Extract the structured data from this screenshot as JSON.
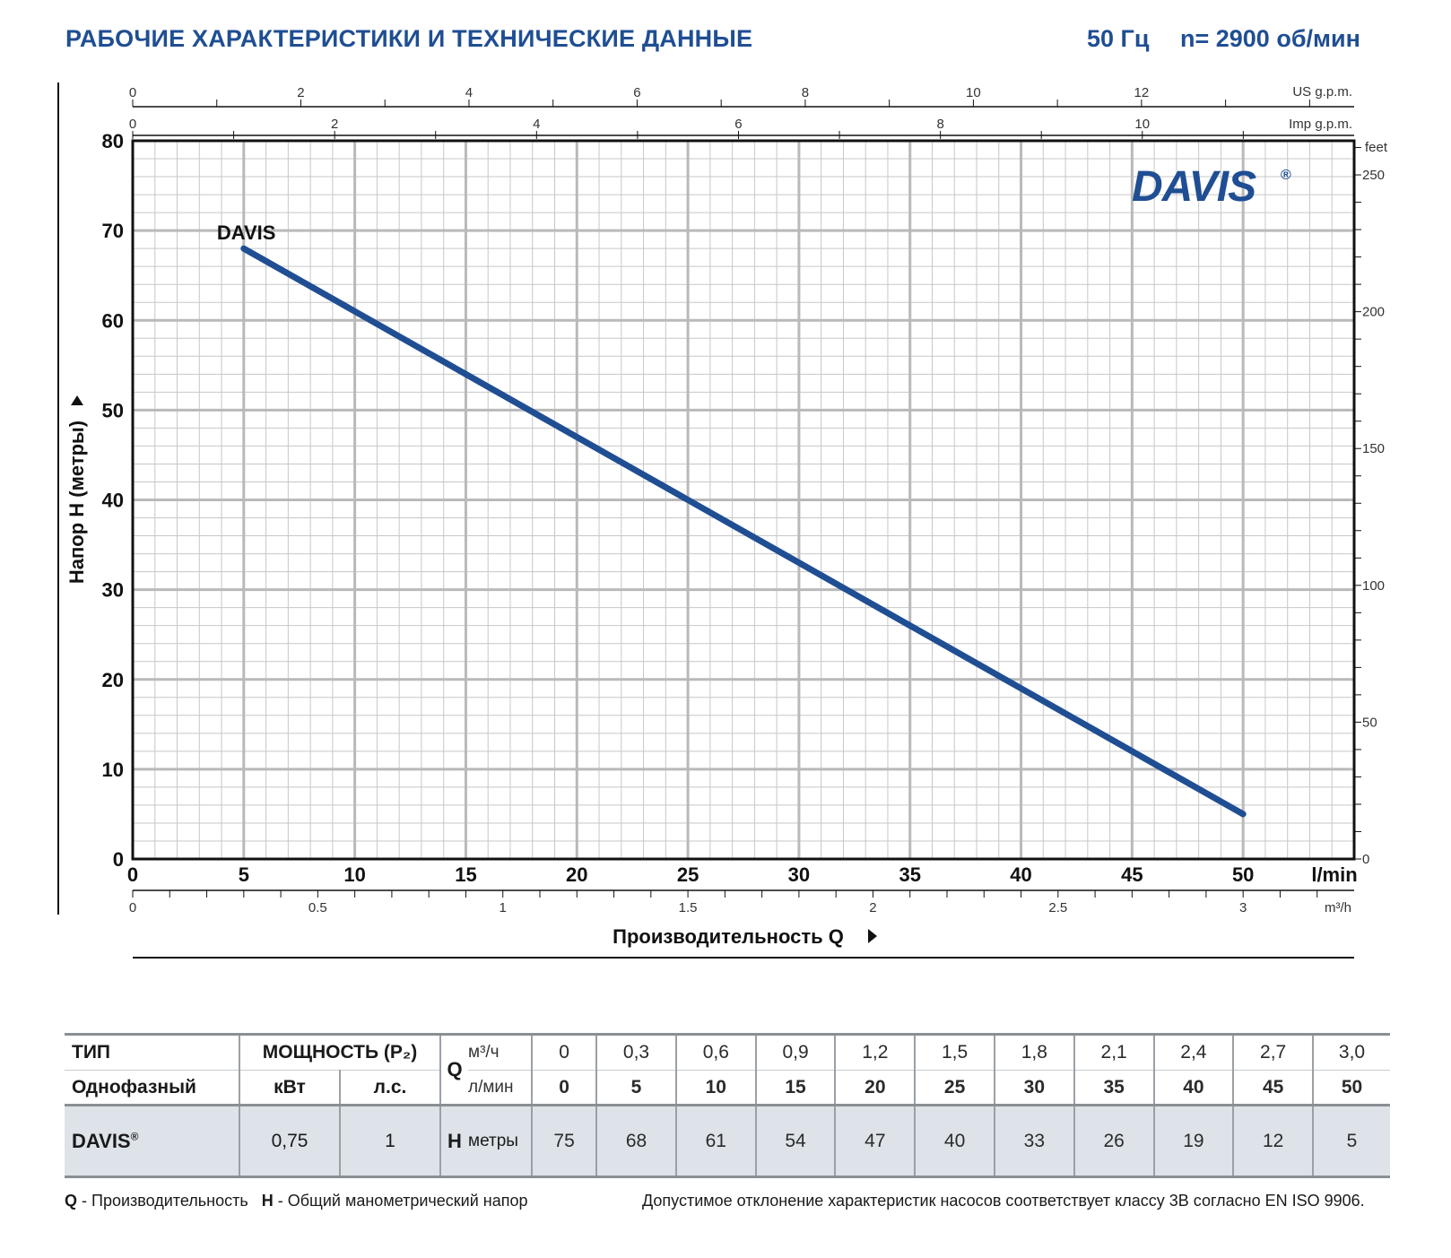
{
  "header": {
    "title": "РАБОЧИЕ ХАРАКТЕРИСТИКИ И ТЕХНИЧЕСКИЕ ДАННЫЕ",
    "frequency": "50 Гц",
    "speed": "n= 2900 об/мин"
  },
  "brand": {
    "logo_text": "DAVIS",
    "registered": "®",
    "color": "#1f4e93"
  },
  "chart_data": {
    "type": "line",
    "series": [
      {
        "name": "DAVIS",
        "color": "#1f4e93",
        "x": [
          5,
          10,
          15,
          20,
          25,
          30,
          35,
          40,
          45,
          50
        ],
        "y": [
          68,
          61,
          54,
          47,
          40,
          33,
          26,
          19,
          12,
          5
        ]
      }
    ],
    "x_axis": {
      "label": "Производительность Q",
      "unit": "l/min",
      "range": [
        0,
        55
      ],
      "ticks": [
        0,
        5,
        10,
        15,
        20,
        25,
        30,
        35,
        40,
        45,
        50
      ]
    },
    "y_axis": {
      "label": "Напор H (метры)",
      "range": [
        0,
        80
      ],
      "ticks": [
        0,
        10,
        20,
        30,
        40,
        50,
        60,
        70,
        80
      ]
    },
    "secondary_axes": {
      "us_gpm": {
        "unit": "US g.p.m.",
        "ticks": [
          0,
          2,
          4,
          6,
          8,
          10,
          12
        ]
      },
      "imp_gpm": {
        "unit": "Imp g.p.m.",
        "ticks": [
          0,
          2,
          4,
          6,
          8,
          10
        ]
      },
      "feet": {
        "unit": "feet",
        "ticks": [
          0,
          50,
          100,
          150,
          200,
          250
        ]
      },
      "m3h": {
        "unit": "m³/h",
        "ticks": [
          "0",
          "0.5",
          "1",
          "1.5",
          "2",
          "2.5",
          "3"
        ]
      }
    },
    "grid": true,
    "grid_color": "#c7c7c7"
  },
  "table": {
    "type_label": "ТИП",
    "phase_label": "Однофазный",
    "power_label": "МОЩНОСТЬ (P₂)",
    "kw_label": "кВт",
    "hp_label": "л.с.",
    "q_label": "Q",
    "m3h_unit": "м³/ч",
    "lmin_unit": "л/мин",
    "h_label": "H",
    "h_unit": "метры",
    "q_m3h": [
      "0",
      "0,3",
      "0,6",
      "0,9",
      "1,2",
      "1,5",
      "1,8",
      "2,1",
      "2,4",
      "2,7",
      "3,0"
    ],
    "q_lmin": [
      "0",
      "5",
      "10",
      "15",
      "20",
      "25",
      "30",
      "35",
      "40",
      "45",
      "50"
    ],
    "rows": [
      {
        "model": "DAVIS",
        "model_mark": "®",
        "kw": "0,75",
        "hp": "1",
        "h": [
          "75",
          "68",
          "61",
          "54",
          "47",
          "40",
          "33",
          "26",
          "19",
          "12",
          "5"
        ]
      }
    ]
  },
  "footer": {
    "q_key": "Q",
    "q_desc": " - Производительность",
    "h_key": "H",
    "h_desc": " - Общий манометрический напор",
    "tolerance": "Допустимое отклонение характеристик насосов соответствует классу 3B согласно EN ISO 9906."
  }
}
